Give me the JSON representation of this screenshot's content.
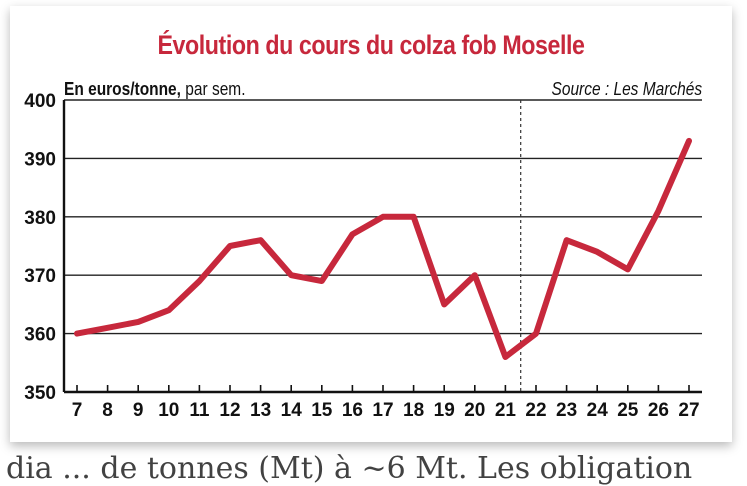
{
  "header": {
    "title": "Évolution du cours du colza fob Moselle",
    "unit_bold": "En euros/tonne,",
    "unit_rest": " par sem.",
    "source": "Source : Les Marchés"
  },
  "page_text": {
    "clipped_line": "dia  ...  de  tonnes (Mt) à  ~6 Mt. Les obligation"
  },
  "colors": {
    "line": "#c7283c",
    "title": "#c7283c",
    "grid": "#222222"
  },
  "chart_data": {
    "type": "line",
    "title": "Évolution du cours du colza fob Moselle",
    "ylabel": "En euros/tonne, par sem.",
    "xlabel": "",
    "x": [
      7,
      8,
      9,
      10,
      11,
      12,
      13,
      14,
      15,
      16,
      17,
      18,
      19,
      20,
      21,
      22,
      23,
      24,
      25,
      26,
      27
    ],
    "y": [
      360,
      361,
      362,
      364,
      369,
      375,
      376,
      370,
      369,
      377,
      380,
      380,
      365,
      370,
      356,
      360,
      376,
      374,
      371,
      381,
      393
    ],
    "ylim": [
      350,
      400
    ],
    "yticks": [
      350,
      360,
      370,
      380,
      390,
      400
    ],
    "grid": true,
    "vertical_marker_after": 21
  }
}
